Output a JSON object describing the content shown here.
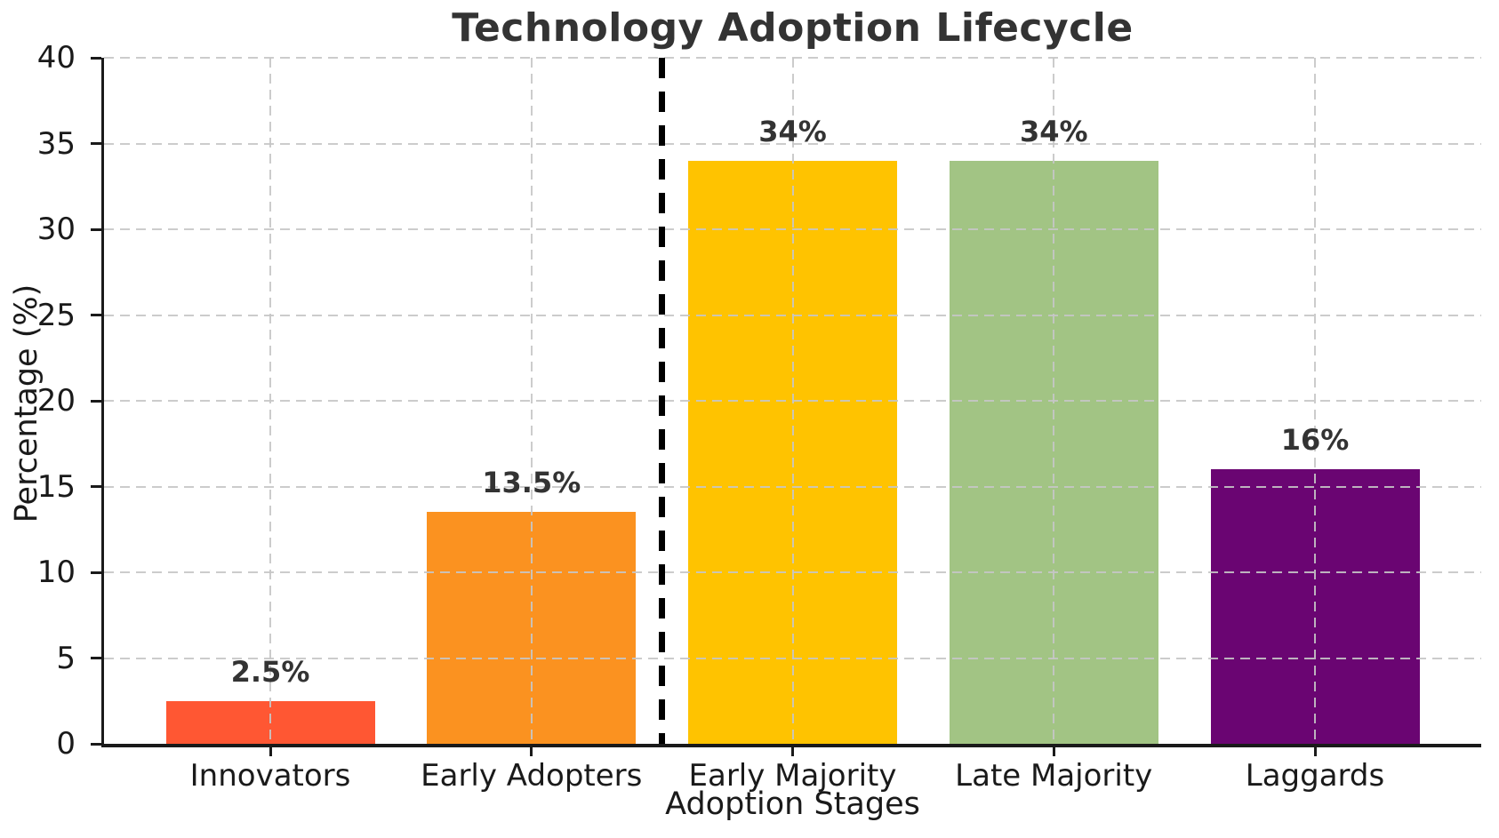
{
  "chart_data": {
    "type": "bar",
    "title": "Technology Adoption Lifecycle",
    "xlabel": "Adoption Stages",
    "ylabel": "Percentage (%)",
    "categories": [
      "Innovators",
      "Early Adopters",
      "Early Majority",
      "Late Majority",
      "Laggards"
    ],
    "values": [
      2.5,
      13.5,
      34,
      34,
      16
    ],
    "value_labels": [
      "2.5%",
      "13.5%",
      "34%",
      "34%",
      "16%"
    ],
    "bar_colors": [
      "#FF5733",
      "#FB9220",
      "#FFC300",
      "#A2C484",
      "#6A0572"
    ],
    "ylim": [
      0,
      40
    ],
    "yticks": [
      0,
      5,
      10,
      15,
      20,
      25,
      30,
      35,
      40
    ],
    "ytick_labels": [
      "0",
      "5",
      "10",
      "15",
      "20",
      "25",
      "30",
      "35",
      "40"
    ],
    "grid": true,
    "grid_style": "dashed",
    "legend_position": "none",
    "annotations": [
      {
        "type": "vline",
        "name": "chasm-divider",
        "x_data": 1.5,
        "color": "#000000",
        "style": "dashed"
      }
    ]
  },
  "style": {
    "background": "#ffffff",
    "title_color": "#333333",
    "value_label_color": "#333333",
    "tick_color": "#1a1a1a",
    "axis_color": "#1a1a1a",
    "grid_color": "#c6c6c6"
  }
}
